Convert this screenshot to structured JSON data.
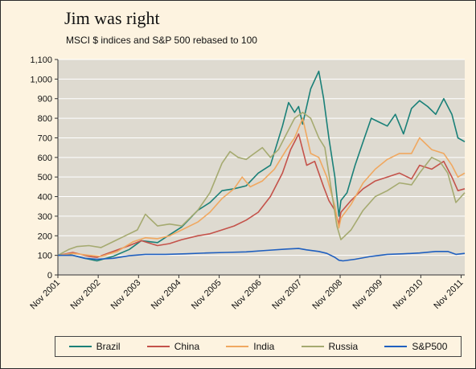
{
  "chart_data": {
    "type": "line",
    "title": "Jim was right",
    "subtitle": "MSCI $ indices and S&P 500 rebased to 100",
    "xlabel": "",
    "ylabel": "",
    "ylim": [
      0,
      1100
    ],
    "yticks": [
      0,
      100,
      200,
      300,
      400,
      500,
      600,
      700,
      800,
      900,
      1000,
      1100
    ],
    "ytick_labels": [
      "0",
      "100",
      "200",
      "300",
      "400",
      "500",
      "600",
      "700",
      "800",
      "900",
      "1,000",
      "1,100"
    ],
    "xlim": [
      2001.83,
      2011.92
    ],
    "xticks": [
      2001.83,
      2002.83,
      2003.83,
      2004.83,
      2005.83,
      2006.83,
      2007.83,
      2008.83,
      2009.83,
      2010.83,
      2011.83
    ],
    "xtick_labels": [
      "Nov 2001",
      "Nov 2002",
      "Nov 2003",
      "Nov 2004",
      "Nov 2005",
      "Nov 2006",
      "Nov 2007",
      "Nov 2008",
      "Nov 2009",
      "Nov 2010",
      "Nov 2011"
    ],
    "grid": true,
    "legend_position": "bottom",
    "series": [
      {
        "name": "Brazil",
        "color": "#1a8078",
        "x": [
          2001.83,
          2002.1,
          2002.5,
          2002.8,
          2003.2,
          2003.6,
          2003.9,
          2004.3,
          2004.6,
          2004.9,
          2005.3,
          2005.6,
          2005.9,
          2006.2,
          2006.5,
          2006.8,
          2007.1,
          2007.4,
          2007.55,
          2007.7,
          2007.8,
          2007.9,
          2008.1,
          2008.3,
          2008.42,
          2008.55,
          2008.7,
          2008.8,
          2008.85,
          2009.0,
          2009.2,
          2009.4,
          2009.6,
          2009.8,
          2010.0,
          2010.2,
          2010.4,
          2010.6,
          2010.8,
          2011.0,
          2011.2,
          2011.4,
          2011.6,
          2011.75,
          2011.92
        ],
        "y": [
          100,
          105,
          85,
          72,
          95,
          130,
          175,
          165,
          205,
          245,
          330,
          370,
          430,
          440,
          455,
          520,
          560,
          760,
          880,
          830,
          860,
          770,
          950,
          1040,
          900,
          700,
          500,
          300,
          380,
          420,
          560,
          680,
          800,
          780,
          760,
          820,
          720,
          850,
          890,
          860,
          820,
          900,
          820,
          700,
          680
        ]
      },
      {
        "name": "China",
        "color": "#c4524a",
        "x": [
          2001.83,
          2002.2,
          2002.6,
          2002.8,
          2003.2,
          2003.6,
          2003.9,
          2004.3,
          2004.6,
          2004.9,
          2005.3,
          2005.6,
          2005.9,
          2006.2,
          2006.5,
          2006.8,
          2007.1,
          2007.4,
          2007.6,
          2007.8,
          2008.0,
          2008.2,
          2008.42,
          2008.55,
          2008.7,
          2008.8,
          2008.85,
          2009.1,
          2009.4,
          2009.7,
          2010.0,
          2010.3,
          2010.6,
          2010.8,
          2011.1,
          2011.4,
          2011.6,
          2011.75,
          2011.92
        ],
        "y": [
          100,
          115,
          95,
          90,
          120,
          150,
          175,
          150,
          160,
          180,
          200,
          210,
          230,
          250,
          280,
          320,
          400,
          520,
          640,
          720,
          560,
          580,
          450,
          380,
          330,
          260,
          320,
          380,
          440,
          480,
          500,
          520,
          490,
          560,
          540,
          580,
          500,
          430,
          440
        ]
      },
      {
        "name": "India",
        "color": "#f0a860",
        "x": [
          2001.83,
          2002.2,
          2002.6,
          2002.9,
          2003.3,
          2003.7,
          2004.0,
          2004.3,
          2004.6,
          2004.9,
          2005.3,
          2005.6,
          2005.9,
          2006.2,
          2006.4,
          2006.6,
          2006.9,
          2007.2,
          2007.5,
          2007.7,
          2007.9,
          2008.1,
          2008.3,
          2008.5,
          2008.7,
          2008.8,
          2008.85,
          2009.1,
          2009.4,
          2009.7,
          2010.0,
          2010.3,
          2010.6,
          2010.8,
          2011.1,
          2011.4,
          2011.6,
          2011.75,
          2011.92
        ],
        "y": [
          100,
          110,
          100,
          95,
          120,
          170,
          190,
          185,
          200,
          230,
          270,
          320,
          390,
          440,
          500,
          450,
          480,
          540,
          640,
          700,
          800,
          620,
          600,
          500,
          350,
          240,
          290,
          360,
          470,
          540,
          590,
          620,
          620,
          700,
          640,
          620,
          560,
          500,
          520
        ]
      },
      {
        "name": "Russia",
        "color": "#a5aa70",
        "x": [
          2001.83,
          2002.1,
          2002.3,
          2002.6,
          2002.9,
          2003.2,
          2003.5,
          2003.8,
          2004.0,
          2004.3,
          2004.6,
          2004.9,
          2005.3,
          2005.6,
          2005.9,
          2006.1,
          2006.3,
          2006.5,
          2006.7,
          2006.9,
          2007.1,
          2007.3,
          2007.5,
          2007.7,
          2007.9,
          2008.1,
          2008.3,
          2008.45,
          2008.6,
          2008.75,
          2008.85,
          2009.1,
          2009.4,
          2009.7,
          2010.0,
          2010.3,
          2010.6,
          2010.8,
          2011.1,
          2011.3,
          2011.5,
          2011.7,
          2011.92
        ],
        "y": [
          100,
          130,
          145,
          150,
          140,
          170,
          200,
          230,
          310,
          250,
          260,
          250,
          330,
          420,
          570,
          630,
          600,
          590,
          620,
          650,
          600,
          640,
          720,
          800,
          830,
          800,
          700,
          650,
          450,
          250,
          180,
          230,
          330,
          400,
          430,
          470,
          460,
          520,
          600,
          580,
          520,
          370,
          420
        ]
      },
      {
        "name": "S&P500",
        "color": "#1f5fbf",
        "x": [
          2001.83,
          2002.2,
          2002.5,
          2002.8,
          2003.2,
          2003.6,
          2004.0,
          2004.5,
          2005.0,
          2005.5,
          2006.0,
          2006.5,
          2007.0,
          2007.5,
          2007.8,
          2008.0,
          2008.3,
          2008.5,
          2008.7,
          2008.8,
          2008.9,
          2009.2,
          2009.6,
          2010.0,
          2010.4,
          2010.8,
          2011.2,
          2011.5,
          2011.7,
          2011.92
        ],
        "y": [
          100,
          100,
          85,
          80,
          85,
          98,
          105,
          105,
          108,
          112,
          115,
          118,
          125,
          132,
          135,
          128,
          120,
          110,
          90,
          75,
          72,
          80,
          95,
          105,
          108,
          112,
          120,
          120,
          105,
          110
        ]
      }
    ]
  }
}
